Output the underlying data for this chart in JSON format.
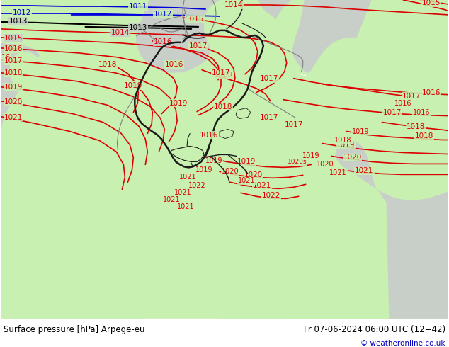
{
  "title_left": "Surface pressure [hPa] Arpege-eu",
  "title_right": "Fr 07-06-2024 06:00 UTC (12+42)",
  "copyright": "© weatheronline.co.uk",
  "bg_green": "#c8f0b0",
  "sea_gray": "#c8cfc8",
  "border_dark": "#1a1a1a",
  "border_gray": "#808080",
  "red": "#dd0000",
  "blue": "#0000dd",
  "black": "#000000",
  "white": "#ffffff",
  "figsize": [
    6.34,
    4.9
  ],
  "dpi": 100
}
